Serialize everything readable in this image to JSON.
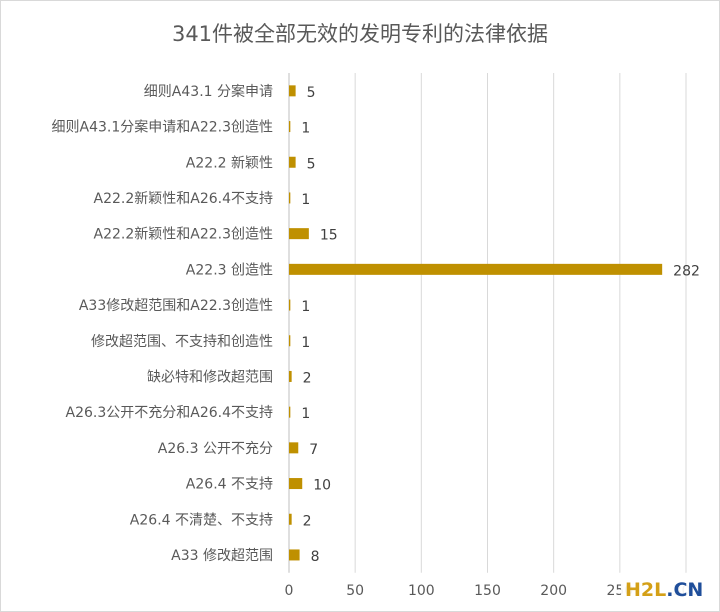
{
  "chart_data": {
    "type": "bar",
    "orientation": "horizontal",
    "title": "341件被全部无效的发明专利的法律依据",
    "categories": [
      "细则A43.1 分案申请",
      "细则A43.1分案申请和A22.3创造性",
      "A22.2 新颖性",
      "A22.2新颖性和A26.4不支持",
      "A22.2新颖性和A22.3创造性",
      "A22.3 创造性",
      "A33修改超范围和A22.3创造性",
      "修改超范围、不支持和创造性",
      "缺必特和修改超范围",
      "A26.3公开不充分和A26.4不支持",
      "A26.3 公开不充分",
      "A26.4 不支持",
      "A26.4 不清楚、不支持",
      "A33 修改超范围"
    ],
    "values": [
      5,
      1,
      5,
      1,
      15,
      282,
      1,
      1,
      2,
      1,
      7,
      10,
      2,
      8
    ],
    "value_labels": [
      "5",
      "1",
      "5",
      "1",
      "15",
      "282",
      "1",
      "1",
      "2",
      "1",
      "7",
      "10",
      "2",
      "8"
    ],
    "xticks": [
      "0",
      "50",
      "100",
      "150",
      "200",
      "250",
      "300"
    ],
    "xlim": [
      0,
      300
    ],
    "grid": true,
    "legend": "none",
    "bar_color": "#bf9000"
  },
  "watermark": {
    "part_a": "H2L",
    "part_b": ".CN"
  }
}
